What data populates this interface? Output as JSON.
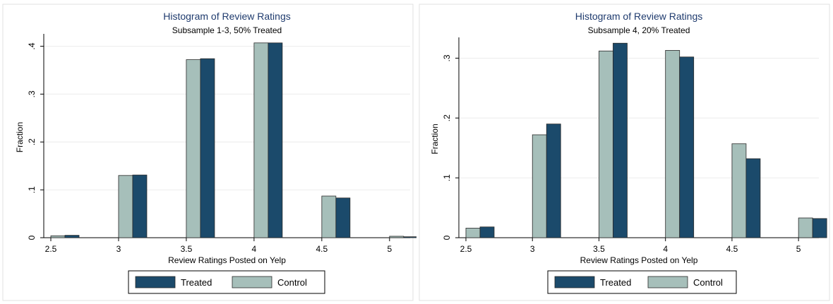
{
  "colors": {
    "background": "#ffffff",
    "title": "#1f3b6e",
    "grid": "#ececec",
    "treated": "#1b4a6b",
    "control": "#a6bfba",
    "bar_edge": "#2a2a2a"
  },
  "chart_data": [
    {
      "type": "bar",
      "title": "Histogram of Review Ratings",
      "subtitle": "Subsample 1-3, 50% Treated",
      "xlabel": "Review Ratings Posted on Yelp",
      "ylabel": "Fraction",
      "categories": [
        "2.5",
        "3",
        "3.5",
        "4",
        "4.5",
        "5"
      ],
      "x_ticks": [
        "2.5",
        "3",
        "3.5",
        "4",
        "4.5",
        "5"
      ],
      "xlim": [
        2.5,
        5.1
      ],
      "ylim": [
        0,
        0.42
      ],
      "y_ticks": [
        0,
        0.1,
        0.2,
        0.3,
        0.4
      ],
      "y_tick_labels": [
        "0",
        ".1",
        ".2",
        ".3",
        ".4"
      ],
      "grid": true,
      "legend_position": "bottom",
      "series": [
        {
          "name": "Control",
          "values": [
            0.004,
            0.13,
            0.372,
            0.407,
            0.087,
            0.003
          ]
        },
        {
          "name": "Treated",
          "values": [
            0.005,
            0.131,
            0.374,
            0.407,
            0.083,
            0.002
          ]
        }
      ],
      "legend": [
        "Treated",
        "Control"
      ]
    },
    {
      "type": "bar",
      "title": "Histogram of Review Ratings",
      "subtitle": "Subsample 4, 20% Treated",
      "xlabel": "Review Ratings Posted on Yelp",
      "ylabel": "Fraction",
      "categories": [
        "2.5",
        "3",
        "3.5",
        "4",
        "4.5",
        "5"
      ],
      "x_ticks": [
        "2.5",
        "3",
        "3.5",
        "4",
        "4.5",
        "5"
      ],
      "xlim": [
        2.5,
        5.1
      ],
      "ylim": [
        0,
        0.33
      ],
      "y_ticks": [
        0,
        0.1,
        0.2,
        0.3
      ],
      "y_tick_labels": [
        "0",
        ".1",
        ".2",
        ".3"
      ],
      "grid": true,
      "legend_position": "bottom",
      "series": [
        {
          "name": "Control",
          "values": [
            0.016,
            0.172,
            0.312,
            0.313,
            0.157,
            0.033
          ]
        },
        {
          "name": "Treated",
          "values": [
            0.018,
            0.19,
            0.325,
            0.302,
            0.132,
            0.032
          ]
        }
      ],
      "legend": [
        "Treated",
        "Control"
      ]
    }
  ]
}
